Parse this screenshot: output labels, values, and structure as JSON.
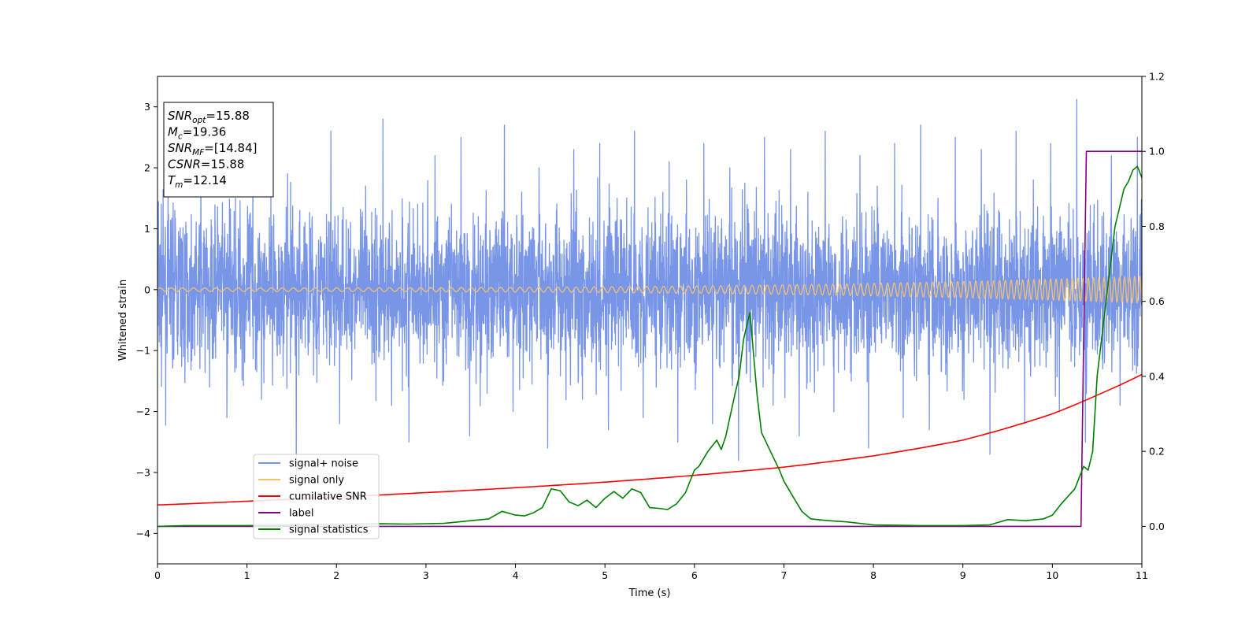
{
  "chart_data": {
    "type": "line",
    "title": "",
    "xlabel": "Time (s)",
    "ylabel": "Whitened strain",
    "y2label": "",
    "xlim": [
      0,
      11
    ],
    "ylim": [
      -4.5,
      3.5
    ],
    "y2lim": [
      -0.1,
      1.2
    ],
    "xticks": [
      "0",
      "1",
      "2",
      "3",
      "4",
      "5",
      "6",
      "7",
      "8",
      "9",
      "10",
      "11"
    ],
    "yticks": [
      "3",
      "2",
      "1",
      "0",
      "−1",
      "−2",
      "−3",
      "−4"
    ],
    "y2ticks": [
      "1.2",
      "1.0",
      "0.8",
      "0.6",
      "0.4",
      "0.2",
      "0.0"
    ],
    "grid": false,
    "legend_position": "lower-left",
    "colors": {
      "noise": "#7895e7",
      "signal": "#f5c26b",
      "cumulative_snr": "#ff0000",
      "label": "#800080",
      "signal_statistics": "#008000"
    },
    "annotation": [
      {
        "main": "SNR",
        "sub": "opt",
        "rest": "=15.88"
      },
      {
        "main": "M",
        "sub": "c",
        "rest": "=19.36"
      },
      {
        "main": "SNR",
        "sub": "MF",
        "rest": "=[14.84]"
      },
      {
        "main": "CSNR",
        "sub": "",
        "rest": "=15.88"
      },
      {
        "main": "T",
        "sub": "m",
        "rest": "=12.14"
      }
    ],
    "series": [
      {
        "name": "signal+ noise",
        "axis": "left",
        "kind": "noise",
        "amplitude_envelope": [
          -3.05,
          3.12
        ],
        "values": [
          0.4,
          -0.6,
          1.3,
          -1.1,
          0.2,
          2.1,
          -1.6,
          0.9,
          -2.1,
          1.5,
          -0.3,
          2.4,
          -1.8,
          0.7,
          -0.9,
          1.9,
          -3.05,
          1.1,
          -1.4,
          0.5,
          2.6,
          -2.2,
          1.0,
          -0.4,
          1.7,
          -1.2,
          2.8,
          -1.9,
          0.6,
          -2.5,
          1.4,
          -0.8,
          2.2,
          -1.5,
          0.3,
          2.5,
          -2.4,
          1.2,
          -1.7,
          0.8,
          2.7,
          -2.0,
          1.6,
          -0.5,
          2.0,
          -2.6,
          1.3,
          -1.0,
          2.3,
          -1.8,
          0.9,
          2.4,
          -2.3,
          1.5,
          -0.6,
          2.6,
          -2.1,
          1.1,
          -1.3,
          2.1,
          -2.5,
          1.8,
          -0.7,
          2.4,
          -2.2,
          1.0,
          2.0,
          -2.8,
          1.4,
          -1.1,
          2.5,
          -1.9,
          0.7,
          2.3,
          -2.4,
          1.6,
          -0.9,
          2.6,
          -2.0,
          1.2,
          -1.5,
          2.2,
          -2.6,
          1.7,
          -0.8,
          2.4,
          -2.1,
          1.0,
          2.7,
          -2.3,
          1.5,
          -1.2,
          2.5,
          -1.8,
          0.9,
          2.3,
          -2.7,
          1.3,
          -1.0,
          2.6,
          -2.2,
          1.8,
          -0.6,
          2.4,
          -2.0,
          1.1,
          3.12,
          -2.5,
          1.4,
          -1.3,
          2.2,
          -1.9,
          0.8,
          2.5,
          -2.4,
          1.6
        ]
      },
      {
        "name": "signal only",
        "axis": "left",
        "kind": "chirp",
        "amplitude_start": 0.03,
        "amplitude_end": 0.22,
        "freq_start_hz": 8,
        "freq_end_hz": 18
      },
      {
        "name": "cumilative SNR",
        "axis": "right",
        "x": [
          0,
          1,
          2,
          3,
          4,
          5,
          6,
          7,
          8,
          9,
          10,
          10.5,
          11
        ],
        "values": [
          0.057,
          0.067,
          0.078,
          0.09,
          0.103,
          0.118,
          0.136,
          0.158,
          0.188,
          0.23,
          0.3,
          0.35,
          0.405
        ]
      },
      {
        "name": "label",
        "axis": "right",
        "x": [
          0,
          10.32,
          10.38,
          11
        ],
        "values": [
          0,
          0,
          1,
          1
        ]
      },
      {
        "name": "signal statistics",
        "axis": "right",
        "x": [
          0,
          0.3,
          1,
          2,
          2.5,
          2.8,
          3.2,
          3.5,
          3.7,
          3.85,
          4.0,
          4.1,
          4.2,
          4.3,
          4.4,
          4.5,
          4.6,
          4.7,
          4.8,
          4.9,
          5.0,
          5.1,
          5.2,
          5.3,
          5.4,
          5.5,
          5.6,
          5.7,
          5.8,
          5.9,
          6.0,
          6.05,
          6.15,
          6.25,
          6.3,
          6.35,
          6.45,
          6.5,
          6.55,
          6.62,
          6.7,
          6.75,
          6.85,
          6.95,
          7.0,
          7.1,
          7.2,
          7.3,
          7.5,
          7.7,
          8.0,
          8.5,
          9.0,
          9.3,
          9.5,
          9.7,
          9.9,
          10.0,
          10.1,
          10.25,
          10.35,
          10.4,
          10.45,
          10.5,
          10.6,
          10.7,
          10.8,
          10.85,
          10.9,
          10.95,
          11.0
        ],
        "values": [
          0.0,
          0.002,
          0.002,
          0.005,
          0.007,
          0.006,
          0.008,
          0.015,
          0.02,
          0.04,
          0.03,
          0.028,
          0.036,
          0.05,
          0.1,
          0.095,
          0.065,
          0.055,
          0.07,
          0.05,
          0.075,
          0.093,
          0.075,
          0.1,
          0.09,
          0.05,
          0.048,
          0.045,
          0.06,
          0.09,
          0.15,
          0.16,
          0.2,
          0.23,
          0.205,
          0.24,
          0.35,
          0.4,
          0.5,
          0.57,
          0.35,
          0.25,
          0.2,
          0.15,
          0.12,
          0.08,
          0.04,
          0.02,
          0.015,
          0.012,
          0.004,
          0.002,
          0.002,
          0.004,
          0.018,
          0.015,
          0.02,
          0.03,
          0.06,
          0.1,
          0.16,
          0.15,
          0.2,
          0.4,
          0.6,
          0.8,
          0.9,
          0.92,
          0.95,
          0.96,
          0.93
        ]
      }
    ]
  }
}
